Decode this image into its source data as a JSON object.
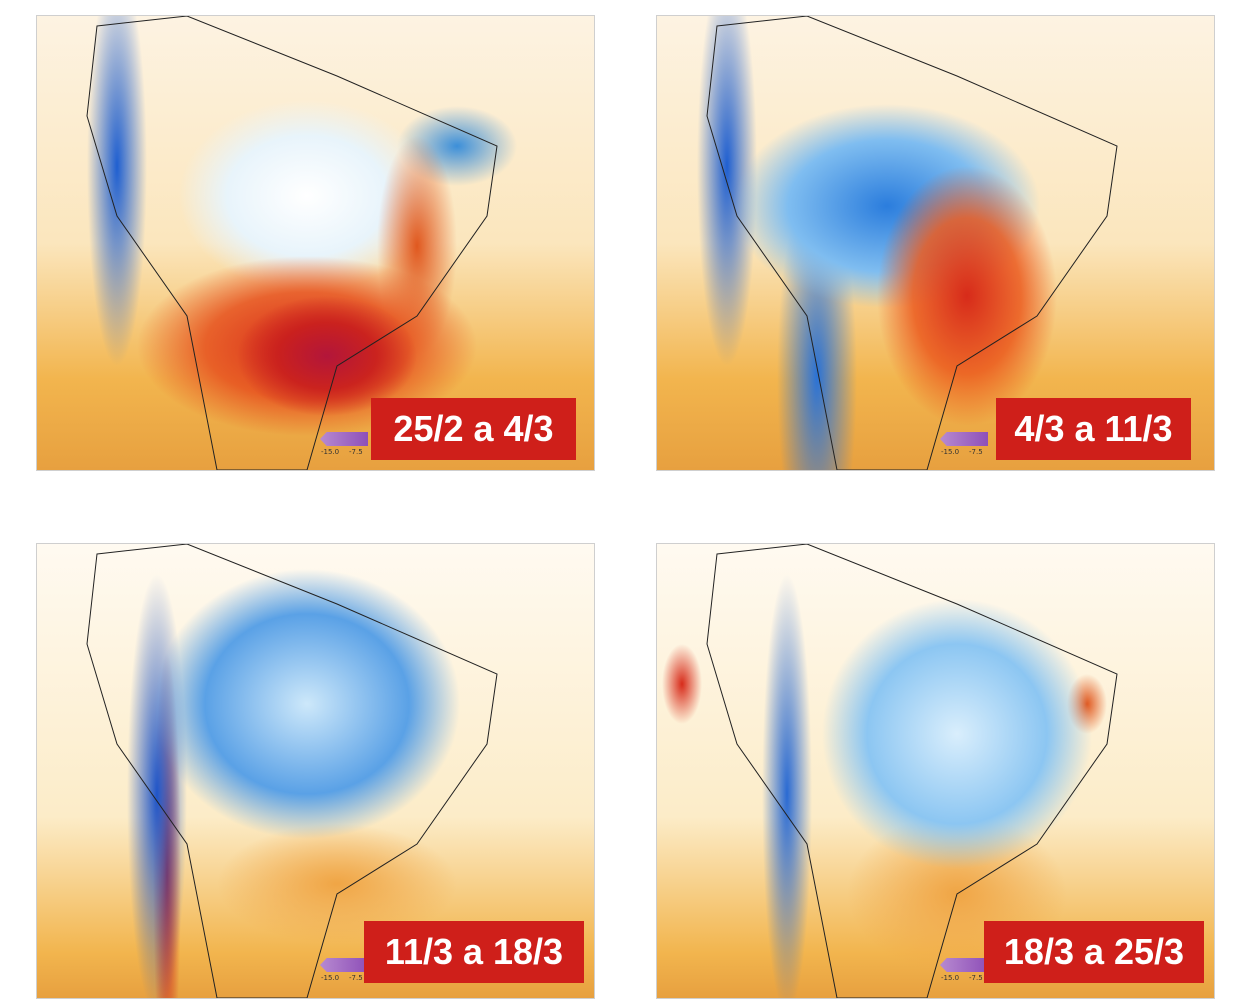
{
  "panels": [
    {
      "period": "25/2 a 4/3",
      "colorbar_ticks": [
        "-15.0",
        "-7.5"
      ]
    },
    {
      "period": "4/3 a 11/3",
      "colorbar_ticks": [
        "-15.0",
        "-7.5"
      ]
    },
    {
      "period": "11/3 a 18/3",
      "colorbar_ticks": [
        "-15.0",
        "-7.5"
      ]
    },
    {
      "period": "18/3 a 25/3",
      "colorbar_ticks": [
        "-15.0",
        "-7.5"
      ]
    }
  ],
  "colors": {
    "label_bg": "#cf1f1a",
    "warm": "#d72b1a",
    "cool": "#2b7ddd",
    "neutral": "#ffffff",
    "mild_warm": "#f2b54e"
  }
}
